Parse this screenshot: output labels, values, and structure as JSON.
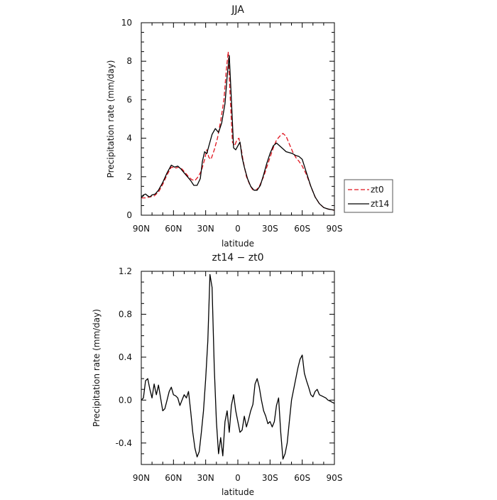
{
  "chart_data": [
    {
      "type": "line",
      "title": "JJA",
      "xlabel": "latitude",
      "ylabel": "Precipitation rate (mm/day)",
      "xlim": [
        90,
        -90
      ],
      "ylim": [
        0,
        10
      ],
      "xticks": [
        90,
        60,
        30,
        0,
        -30,
        -60,
        -90
      ],
      "xticklabels": [
        "90N",
        "60N",
        "30N",
        "0",
        "30S",
        "60S",
        "90S"
      ],
      "yticks": [
        0,
        2,
        4,
        6,
        8,
        10
      ],
      "yticklabels": [
        "0",
        "2",
        "4",
        "6",
        "8",
        "10"
      ],
      "legend": {
        "placement": "right",
        "entries": [
          "zt0",
          "zt14"
        ]
      },
      "series": [
        {
          "name": "zt0",
          "color": "#e0141e",
          "dash": "dashed",
          "x": [
            90,
            86,
            82,
            78,
            74,
            70,
            66,
            62,
            58,
            55,
            52,
            49,
            46,
            43,
            40,
            37,
            34,
            31,
            29,
            27,
            25,
            22,
            19,
            16,
            13,
            11,
            9,
            7,
            5,
            3,
            1,
            -1,
            -3,
            -5,
            -8,
            -11,
            -14,
            -17,
            -20,
            -24,
            -27,
            -30,
            -33,
            -36,
            -39,
            -42,
            -45,
            -48,
            -51,
            -54,
            -57,
            -60,
            -64,
            -68,
            -72,
            -76,
            -80,
            -84,
            -88,
            -90
          ],
          "values": [
            0.9,
            0.9,
            0.95,
            1.0,
            1.2,
            1.6,
            2.1,
            2.5,
            2.45,
            2.5,
            2.4,
            2.2,
            2.0,
            1.85,
            1.8,
            2.0,
            2.3,
            2.9,
            3.4,
            3.0,
            2.9,
            3.4,
            4.0,
            4.9,
            6.0,
            7.4,
            8.5,
            6.0,
            3.8,
            3.6,
            3.9,
            4.0,
            3.5,
            2.8,
            2.0,
            1.6,
            1.3,
            1.3,
            1.5,
            2.0,
            2.5,
            3.0,
            3.5,
            3.9,
            4.1,
            4.25,
            4.1,
            3.7,
            3.3,
            3.0,
            2.8,
            2.55,
            2.1,
            1.5,
            0.95,
            0.6,
            0.4,
            0.32,
            0.28,
            0.26
          ]
        },
        {
          "name": "zt14",
          "color": "#000000",
          "dash": "solid",
          "x": [
            90,
            88,
            86,
            84,
            82,
            80,
            77,
            74,
            70,
            66,
            62,
            59,
            56,
            53,
            50,
            47,
            44,
            41,
            38,
            35,
            33,
            31,
            29,
            27,
            24,
            21,
            18,
            15,
            12,
            10,
            8,
            6,
            4,
            2,
            0,
            -2,
            -4,
            -6,
            -9,
            -12,
            -15,
            -18,
            -21,
            -24,
            -27,
            -30,
            -33,
            -36,
            -39,
            -42,
            -45,
            -48,
            -51,
            -54,
            -57,
            -60,
            -64,
            -68,
            -72,
            -76,
            -80,
            -84,
            -88,
            -90
          ],
          "values": [
            0.9,
            1.05,
            1.1,
            1.0,
            0.95,
            1.05,
            1.1,
            1.3,
            1.7,
            2.2,
            2.6,
            2.5,
            2.55,
            2.4,
            2.2,
            2.0,
            1.8,
            1.55,
            1.55,
            1.9,
            2.8,
            3.3,
            3.2,
            3.6,
            4.2,
            4.5,
            4.3,
            4.8,
            5.8,
            7.2,
            8.3,
            6.0,
            3.5,
            3.4,
            3.6,
            3.8,
            3.0,
            2.5,
            1.9,
            1.5,
            1.3,
            1.3,
            1.55,
            2.1,
            2.7,
            3.2,
            3.6,
            3.75,
            3.6,
            3.45,
            3.3,
            3.25,
            3.2,
            3.1,
            3.05,
            2.9,
            2.2,
            1.5,
            0.95,
            0.6,
            0.4,
            0.32,
            0.28,
            0.26
          ]
        }
      ]
    },
    {
      "type": "line",
      "title": "zt14 − zt0",
      "xlabel": "latitude",
      "ylabel": "Precipitation rate (mm/day)",
      "xlim": [
        90,
        -90
      ],
      "ylim": [
        -0.6,
        1.2
      ],
      "xticks": [
        90,
        60,
        30,
        0,
        -30,
        -60,
        -90
      ],
      "xticklabels": [
        "90N",
        "60N",
        "30N",
        "0",
        "30S",
        "60S",
        "90S"
      ],
      "yticks": [
        -0.4,
        0.0,
        0.4,
        0.8,
        1.2
      ],
      "yticklabels": [
        "-0.4",
        "0.0",
        "0.4",
        "0.8",
        "1.2"
      ],
      "series": [
        {
          "color": "#000000",
          "dash": "solid",
          "x": [
            90,
            88,
            86,
            84,
            82,
            80,
            78,
            76,
            74,
            72,
            70,
            68,
            66,
            64,
            62,
            60,
            58,
            56,
            54,
            52,
            50,
            48,
            46,
            44,
            42,
            40,
            38,
            36,
            34,
            32,
            30,
            28,
            26,
            24,
            22,
            20,
            18,
            16,
            14,
            12,
            10,
            8,
            6,
            4,
            2,
            0,
            -2,
            -4,
            -6,
            -8,
            -10,
            -12,
            -14,
            -16,
            -18,
            -20,
            -22,
            -24,
            -26,
            -28,
            -30,
            -32,
            -34,
            -36,
            -38,
            -40,
            -42,
            -44,
            -46,
            -48,
            -50,
            -52,
            -54,
            -56,
            -58,
            -60,
            -62,
            -64,
            -66,
            -68,
            -70,
            -72,
            -74,
            -76,
            -78,
            -80,
            -82,
            -84,
            -86,
            -88,
            -90
          ],
          "values": [
            0.0,
            0.02,
            0.18,
            0.2,
            0.1,
            0.02,
            0.15,
            0.05,
            0.14,
            0.02,
            -0.1,
            -0.08,
            0.0,
            0.08,
            0.12,
            0.05,
            0.04,
            0.02,
            -0.05,
            0.0,
            0.05,
            0.02,
            0.08,
            -0.1,
            -0.3,
            -0.45,
            -0.53,
            -0.48,
            -0.3,
            -0.1,
            0.2,
            0.55,
            1.17,
            1.05,
            0.3,
            -0.2,
            -0.5,
            -0.35,
            -0.52,
            -0.2,
            -0.1,
            -0.3,
            -0.05,
            0.05,
            -0.1,
            -0.2,
            -0.3,
            -0.28,
            -0.15,
            -0.25,
            -0.18,
            -0.1,
            -0.04,
            0.15,
            0.2,
            0.12,
            0.0,
            -0.1,
            -0.15,
            -0.22,
            -0.2,
            -0.25,
            -0.2,
            -0.05,
            0.02,
            -0.3,
            -0.55,
            -0.5,
            -0.4,
            -0.2,
            0.0,
            0.1,
            0.2,
            0.3,
            0.38,
            0.42,
            0.25,
            0.18,
            0.12,
            0.05,
            0.03,
            0.08,
            0.1,
            0.05,
            0.04,
            0.03,
            0.02,
            0.0,
            -0.01,
            -0.02,
            -0.03
          ]
        }
      ]
    }
  ]
}
